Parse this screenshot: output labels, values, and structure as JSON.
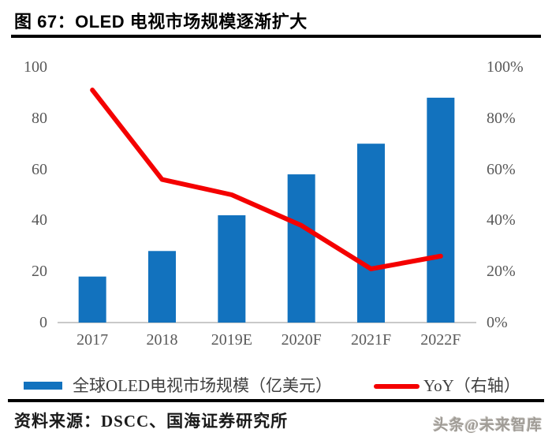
{
  "header": {
    "title": "图 67：OLED 电视市场规模逐渐扩大"
  },
  "chart_data": {
    "type": "bar",
    "title": "OLED 电视市场规模逐渐扩大",
    "categories": [
      "2017",
      "2018",
      "2019E",
      "2020F",
      "2021F",
      "2022F"
    ],
    "series": [
      {
        "name": "全球OLED电视市场规模（亿美元）",
        "type": "bar",
        "axis": "left",
        "values": [
          18,
          28,
          42,
          58,
          70,
          88
        ]
      },
      {
        "name": "YoY（右轴）",
        "type": "line",
        "axis": "right",
        "unit": "%",
        "values": [
          91,
          56,
          50,
          38,
          21,
          26
        ]
      }
    ],
    "left_axis": {
      "min": 0,
      "max": 100,
      "ticks": [
        100,
        80,
        60,
        40,
        20,
        0
      ]
    },
    "right_axis": {
      "min": 0,
      "max": 100,
      "tick_labels": [
        "100%",
        "80%",
        "60%",
        "40%",
        "20%",
        "0%"
      ]
    },
    "grid": false,
    "legend_position": "bottom"
  },
  "legend": {
    "bar_label": "全球OLED电视市场规模（亿美元）",
    "yoy_label": "YoY（右轴）"
  },
  "footer": {
    "source_label": "资料来源：DSCC、国海证券研究所",
    "watermark": "头条@未来智库"
  },
  "colors": {
    "bar": "#1272BE",
    "line": "#F40000",
    "tick_text": "#595959",
    "axis_line": "#C9C9C9",
    "legend_text": "#3F3F3F",
    "rule": "#000000"
  }
}
